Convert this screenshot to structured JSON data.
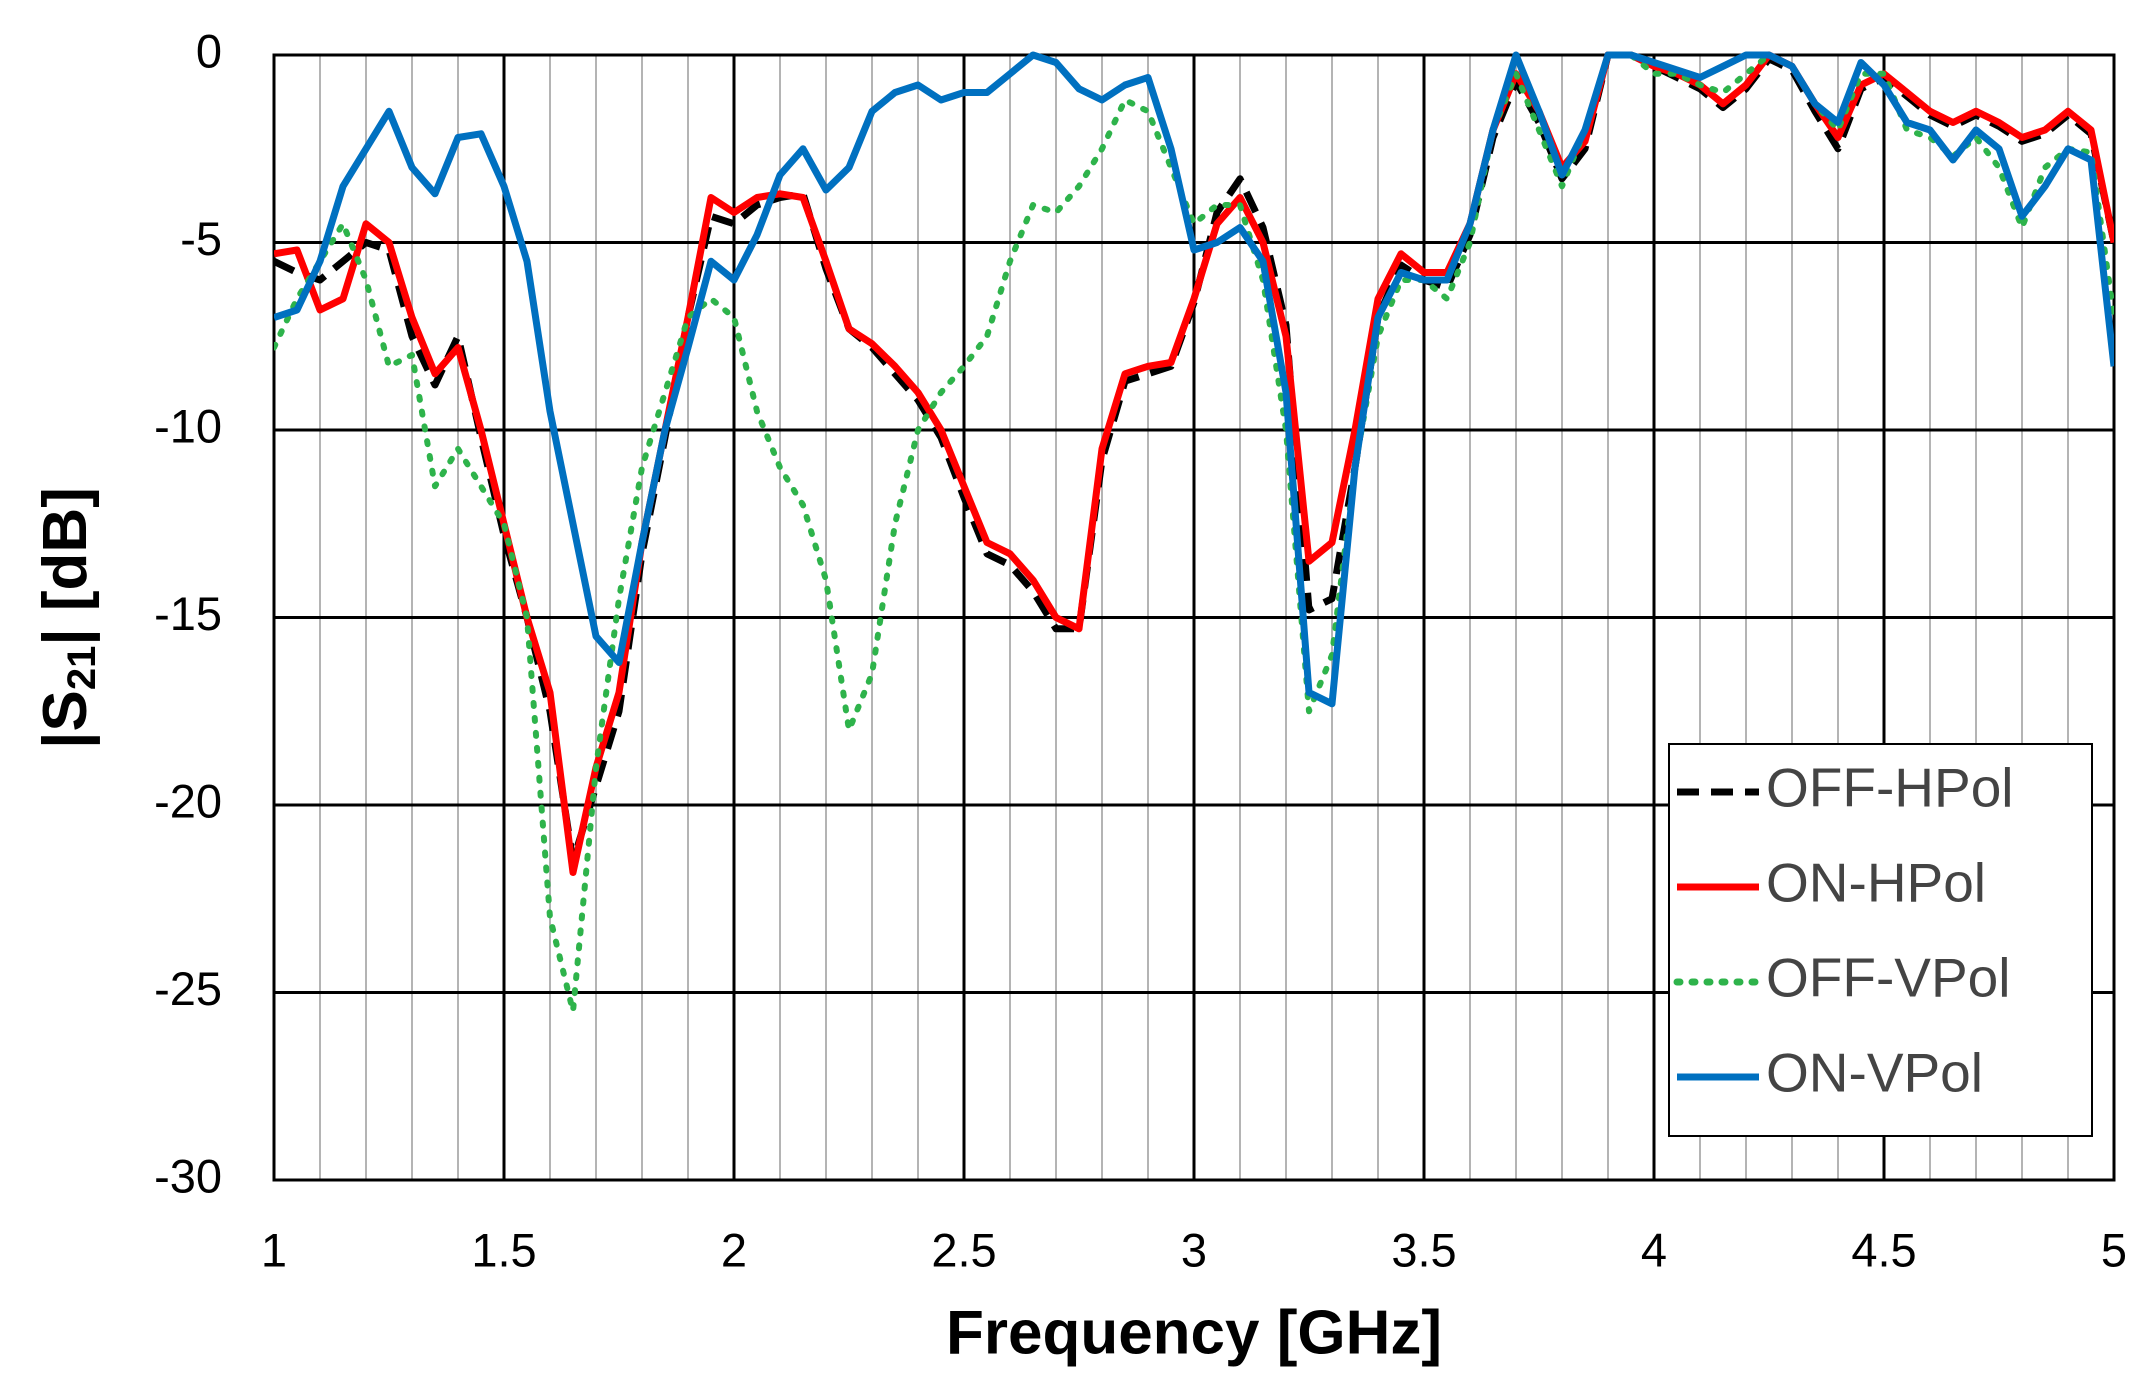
{
  "chart_data": {
    "type": "line",
    "xlabel": "Frequency [GHz]",
    "ylabel_parts": [
      "|S",
      "21",
      "| [dB]"
    ],
    "xlim": [
      1,
      5
    ],
    "ylim": [
      -30,
      0
    ],
    "xticks": [
      1,
      1.5,
      2,
      2.5,
      3,
      3.5,
      4,
      4.5,
      5
    ],
    "yticks": [
      -30,
      -25,
      -20,
      -15,
      -10,
      -5,
      0
    ],
    "xminorticks": [
      1.1,
      1.2,
      1.3,
      1.4,
      1.6,
      1.7,
      1.8,
      1.9,
      2.1,
      2.2,
      2.3,
      2.4,
      2.6,
      2.7,
      2.8,
      2.9,
      3.1,
      3.2,
      3.3,
      3.4,
      3.6,
      3.7,
      3.8,
      3.9,
      4.1,
      4.2,
      4.3,
      4.4,
      4.6,
      4.7,
      4.8,
      4.9
    ],
    "grid": true,
    "legend_position": "lower right",
    "x": [
      1.0,
      1.05,
      1.1,
      1.15,
      1.2,
      1.25,
      1.3,
      1.35,
      1.4,
      1.45,
      1.5,
      1.55,
      1.6,
      1.65,
      1.7,
      1.75,
      1.8,
      1.85,
      1.9,
      1.95,
      2.0,
      2.05,
      2.1,
      2.15,
      2.2,
      2.25,
      2.3,
      2.35,
      2.4,
      2.45,
      2.5,
      2.55,
      2.6,
      2.65,
      2.7,
      2.75,
      2.8,
      2.85,
      2.9,
      2.95,
      3.0,
      3.05,
      3.1,
      3.15,
      3.2,
      3.25,
      3.3,
      3.35,
      3.4,
      3.45,
      3.5,
      3.55,
      3.6,
      3.65,
      3.7,
      3.75,
      3.8,
      3.85,
      3.9,
      3.95,
      4.0,
      4.05,
      4.1,
      4.15,
      4.2,
      4.25,
      4.3,
      4.35,
      4.4,
      4.45,
      4.5,
      4.55,
      4.6,
      4.65,
      4.7,
      4.75,
      4.8,
      4.85,
      4.9,
      4.95,
      5.0
    ],
    "series": [
      {
        "name": "OFF-HPol",
        "color": "#000000",
        "dash": "dash",
        "values": [
          -5.5,
          -5.8,
          -6.0,
          -5.5,
          -5.0,
          -5.2,
          -7.5,
          -8.8,
          -7.5,
          -10.2,
          -12.8,
          -15,
          -17.5,
          -21.5,
          -19.5,
          -17.5,
          -13.3,
          -10.2,
          -7.0,
          -4.3,
          -4.5,
          -4.0,
          -3.8,
          -3.7,
          -5.7,
          -7.3,
          -7.8,
          -8.5,
          -9.2,
          -10.2,
          -11.8,
          -13.3,
          -13.6,
          -14.3,
          -15.3,
          -15.3,
          -10.8,
          -8.7,
          -8.5,
          -8.3,
          -6.6,
          -4.2,
          -3.3,
          -4.6,
          -7.2,
          -14.8,
          -14.5,
          -11,
          -7.0,
          -5.6,
          -6.0,
          -6.2,
          -4.8,
          -2.2,
          -0.7,
          -1.8,
          -3.3,
          -2.5,
          0,
          0,
          -0.3,
          -0.6,
          -0.9,
          -1.4,
          -0.9,
          -0.1,
          -0.4,
          -1.5,
          -2.5,
          -0.9,
          -0.6,
          -1.1,
          -1.6,
          -1.9,
          -1.6,
          -1.9,
          -2.3,
          -2.1,
          -1.6,
          -2.1,
          -5.0
        ]
      },
      {
        "name": "ON-HPol",
        "color": "#ff0000",
        "dash": "solid",
        "values": [
          -5.3,
          -5.2,
          -6.8,
          -6.5,
          -4.5,
          -5.0,
          -7.0,
          -8.5,
          -7.8,
          -10,
          -12.5,
          -15,
          -17,
          -21.8,
          -19,
          -17,
          -13,
          -10,
          -7,
          -3.8,
          -4.2,
          -3.8,
          -3.7,
          -3.8,
          -5.5,
          -7.3,
          -7.7,
          -8.3,
          -9.0,
          -10,
          -11.5,
          -13,
          -13.3,
          -14,
          -15,
          -15.3,
          -10.5,
          -8.5,
          -8.3,
          -8.2,
          -6.5,
          -4.5,
          -3.8,
          -5.0,
          -7.5,
          -13.5,
          -13.0,
          -10,
          -6.5,
          -5.3,
          -5.8,
          -5.8,
          -4.5,
          -2.0,
          -0.5,
          -1.5,
          -3.0,
          -2.3,
          0,
          0,
          -0.3,
          -0.5,
          -0.8,
          -1.3,
          -0.8,
          0,
          -0.3,
          -1.3,
          -2.2,
          -0.8,
          -0.5,
          -1.0,
          -1.5,
          -1.8,
          -1.5,
          -1.8,
          -2.2,
          -2.0,
          -1.5,
          -2.0,
          -5.0
        ]
      },
      {
        "name": "OFF-VPol",
        "color": "#2eb34b",
        "dash": "dot",
        "values": [
          -7.8,
          -6.5,
          -5.5,
          -4.5,
          -6.0,
          -8.3,
          -8.0,
          -11.5,
          -10.5,
          -11.5,
          -12.5,
          -15,
          -23,
          -25.5,
          -19,
          -14.5,
          -11,
          -9,
          -7,
          -6.5,
          -7.0,
          -9.5,
          -11.0,
          -12.0,
          -14,
          -18,
          -16.5,
          -12.5,
          -10.0,
          -9.0,
          -8.3,
          -7.5,
          -5.5,
          -4.0,
          -4.2,
          -3.5,
          -2.5,
          -1.2,
          -1.5,
          -3.0,
          -4.5,
          -4.0,
          -4.0,
          -6.0,
          -10,
          -17.5,
          -16,
          -11,
          -7.5,
          -6.0,
          -6.0,
          -6.5,
          -5.0,
          -2.0,
          -0.5,
          -2.0,
          -3.5,
          -2.0,
          0,
          0,
          -0.5,
          -0.5,
          -0.8,
          -1.0,
          -0.5,
          0,
          -0.3,
          -1.3,
          -2.0,
          -0.5,
          -0.5,
          -2.0,
          -2.2,
          -2.7,
          -2.2,
          -3.0,
          -4.6,
          -3.0,
          -2.5,
          -2.6,
          -7.0
        ]
      },
      {
        "name": "ON-VPol",
        "color": "#0070c0",
        "dash": "solid",
        "values": [
          -7.0,
          -6.8,
          -5.5,
          -3.5,
          -2.5,
          -1.5,
          -3.0,
          -3.7,
          -2.2,
          -2.1,
          -3.5,
          -5.5,
          -9.5,
          -12.5,
          -15.5,
          -16.2,
          -13,
          -10,
          -7.8,
          -5.5,
          -6.0,
          -4.8,
          -3.2,
          -2.5,
          -3.6,
          -3.0,
          -1.5,
          -1.0,
          -0.8,
          -1.2,
          -1.0,
          -1.0,
          -0.5,
          0,
          -0.2,
          -0.9,
          -1.2,
          -0.8,
          -0.6,
          -2.5,
          -5.2,
          -5.0,
          -4.6,
          -5.5,
          -9,
          -17,
          -17.3,
          -11,
          -7,
          -5.8,
          -6.0,
          -6.0,
          -4.5,
          -2.0,
          0,
          -1.5,
          -3.2,
          -2.0,
          0,
          0,
          -0.2,
          -0.4,
          -0.6,
          -0.3,
          0,
          0,
          -0.3,
          -1.3,
          -1.8,
          -0.2,
          -0.8,
          -1.8,
          -2.0,
          -2.8,
          -2.0,
          -2.5,
          -4.3,
          -3.5,
          -2.5,
          -2.8,
          -8.3
        ]
      }
    ]
  }
}
